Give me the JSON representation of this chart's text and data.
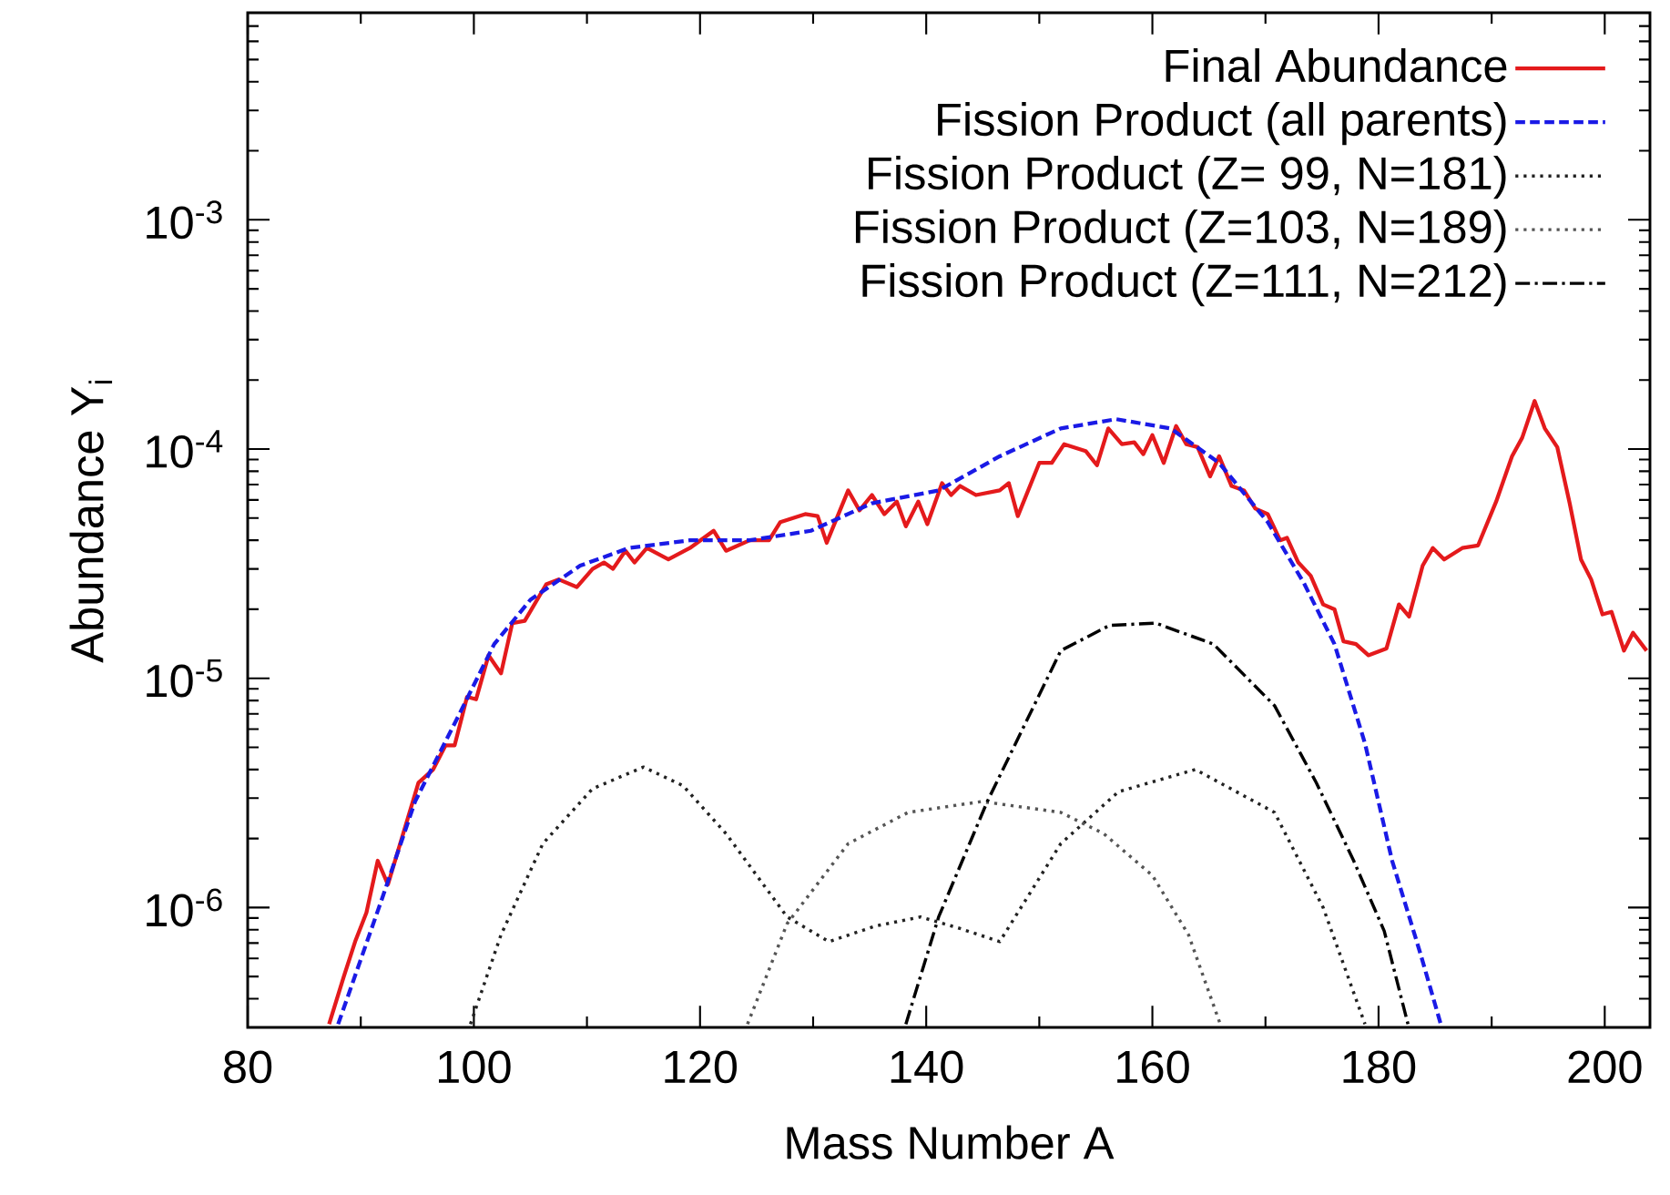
{
  "chart_data": {
    "type": "line",
    "xlabel": "Mass Number A",
    "ylabel": "Abundance Y$_{i}$",
    "xlim": [
      80,
      204
    ],
    "ylim": [
      3e-07,
      0.008
    ],
    "log": "y",
    "legend": "top right",
    "xticks": [
      80,
      100,
      120,
      140,
      160,
      180,
      200
    ],
    "yticks": [
      {
        "value": 1e-06,
        "label": "10$^{-6}$"
      },
      {
        "value": 1e-05,
        "label": "10$^{-5}$"
      },
      {
        "value": 0.0001,
        "label": "10$^{-4}$"
      },
      {
        "value": 0.001,
        "label": "10$^{-3}$"
      }
    ],
    "series": [
      {
        "name": "Final Abundance",
        "color": "#e41a1c",
        "line_style": "solid",
        "x": [
          87.2,
          88.5,
          89.5,
          90.5,
          91.5,
          92.4,
          95.1,
          96.4,
          97.5,
          98.3,
          99.4,
          100.2,
          101.3,
          102.4,
          103.4,
          104.5,
          106.4,
          107.5,
          109.1,
          110.5,
          111.5,
          112.3,
          113.4,
          114.2,
          115.3,
          117.2,
          119.1,
          121.2,
          122.3,
          124.4,
          126.1,
          127.1,
          129.3,
          130.4,
          131.2,
          133.1,
          134.1,
          135.2,
          136.3,
          137.4,
          138.2,
          139.3,
          140.1,
          141.4,
          142.2,
          143.0,
          144.4,
          146.5,
          147.3,
          148.1,
          150.0,
          151.1,
          152.2,
          154.1,
          155.1,
          156.1,
          157.3,
          158.4,
          159.2,
          160.0,
          161.0,
          162.1,
          163.0,
          164.0,
          165.1,
          165.9,
          167.0,
          168.1,
          169.1,
          170.2,
          171.3,
          171.9,
          172.9,
          174.0,
          175.1,
          176.1,
          176.9,
          178.0,
          179.1,
          180.7,
          181.8,
          182.7,
          183.9,
          184.8,
          185.8,
          187.4,
          188.8,
          190.4,
          191.8,
          192.7,
          193.8,
          194.7,
          195.8,
          196.9,
          197.9,
          198.8,
          199.8,
          200.6,
          201.7,
          202.5,
          203.7
        ],
        "values": [
          3.1e-07,
          5e-07,
          7.1e-07,
          9.5e-07,
          1.6e-06,
          1.26e-06,
          3.5e-06,
          4e-06,
          5.1e-06,
          5.1e-06,
          8.3e-06,
          8.1e-06,
          1.26e-05,
          1.05e-05,
          1.74e-05,
          1.78e-05,
          2.57e-05,
          2.7e-05,
          2.5e-05,
          3e-05,
          3.2e-05,
          3e-05,
          3.6e-05,
          3.2e-05,
          3.7e-05,
          3.3e-05,
          3.7e-05,
          4.4e-05,
          3.6e-05,
          4e-05,
          4e-05,
          4.8e-05,
          5.2e-05,
          5.1e-05,
          3.9e-05,
          6.6e-05,
          5.4e-05,
          6.3e-05,
          5.2e-05,
          5.9e-05,
          4.6e-05,
          5.9e-05,
          4.7e-05,
          7.1e-05,
          6.3e-05,
          6.9e-05,
          6.3e-05,
          6.6e-05,
          7.1e-05,
          5.1e-05,
          8.7e-05,
          8.7e-05,
          0.000105,
          9.8e-05,
          8.5e-05,
          0.000123,
          0.000105,
          0.000107,
          9.5e-05,
          0.000115,
          8.7e-05,
          0.000126,
          0.000105,
          0.000102,
          7.6e-05,
          9.3e-05,
          6.9e-05,
          6.6e-05,
          5.5e-05,
          5.2e-05,
          4e-05,
          4.1e-05,
          3.2e-05,
          2.8e-05,
          2.1e-05,
          2e-05,
          1.45e-05,
          1.41e-05,
          1.26e-05,
          1.35e-05,
          2.1e-05,
          1.86e-05,
          3.1e-05,
          3.7e-05,
          3.3e-05,
          3.7e-05,
          3.8e-05,
          5.9e-05,
          9.3e-05,
          0.000112,
          0.000162,
          0.000123,
          0.000102,
          5.8e-05,
          3.3e-05,
          2.7e-05,
          1.9e-05,
          1.95e-05,
          1.32e-05,
          1.58e-05,
          1.32e-05
        ]
      },
      {
        "name": "Fission Product (all parents)",
        "color": "#1a1ae6",
        "line_style": "dashed",
        "x": [
          88.0,
          91.9,
          94.8,
          98.6,
          101.8,
          105.0,
          109.4,
          113.7,
          119.1,
          124.4,
          129.8,
          135.2,
          141.1,
          146.5,
          151.9,
          156.8,
          161.6,
          165.9,
          170.2,
          173.4,
          176.1,
          178.8,
          181.2,
          183.7,
          185.5
        ],
        "values": [
          3.1e-07,
          1.1e-06,
          2.9e-06,
          6.8e-06,
          1.41e-05,
          2.2e-05,
          3.1e-05,
          3.7e-05,
          4e-05,
          4e-05,
          4.4e-05,
          5.8e-05,
          6.6e-05,
          9.3e-05,
          0.000123,
          0.000135,
          0.000123,
          8.7e-05,
          4.8e-05,
          2.6e-05,
          1.41e-05,
          5.2e-06,
          1.6e-06,
          6.3e-07,
          3.1e-07
        ]
      },
      {
        "name": "Fission Product (Z=  99, N=181)",
        "color": "#222222",
        "line_style": "dotted",
        "x": [
          99.7,
          102.4,
          106.1,
          110.5,
          115.0,
          118.5,
          122.3,
          127.7,
          131.4,
          135.5,
          139.5,
          143.0,
          146.5,
          151.9,
          157.0,
          163.8,
          170.8,
          175.1,
          178.8
        ],
        "values": [
          3.1e-07,
          7.6e-07,
          1.9e-06,
          3.3e-06,
          4.1e-06,
          3.4e-06,
          2.1e-06,
          9.1e-07,
          7.1e-07,
          8.3e-07,
          9.1e-07,
          8.1e-07,
          7.1e-07,
          1.9e-06,
          3.2e-06,
          4e-06,
          2.6e-06,
          1e-06,
          3.1e-07
        ]
      },
      {
        "name": "Fission Product (Z=103, N=189)",
        "color": "#555555",
        "line_style": "dotted",
        "x": [
          124.2,
          127.7,
          133.1,
          138.4,
          144.9,
          151.9,
          155.7,
          160.0,
          163.2,
          166.0
        ],
        "values": [
          3.1e-07,
          8.5e-07,
          1.9e-06,
          2.6e-06,
          2.9e-06,
          2.6e-06,
          2.1e-06,
          1.38e-06,
          7.6e-07,
          3.1e-07
        ]
      },
      {
        "name": "Fission Product (Z=111, N=212)",
        "color": "#000000",
        "line_style": "dashdot",
        "x": [
          138.2,
          141.1,
          145.4,
          151.9,
          156.2,
          160.3,
          165.4,
          170.8,
          174.5,
          177.8,
          180.5,
          182.6
        ],
        "values": [
          3.1e-07,
          9.1e-07,
          2.9e-06,
          1.32e-05,
          1.7e-05,
          1.74e-05,
          1.41e-05,
          7.6e-06,
          3.5e-06,
          1.6e-06,
          7.9e-07,
          3.1e-07
        ]
      }
    ]
  }
}
